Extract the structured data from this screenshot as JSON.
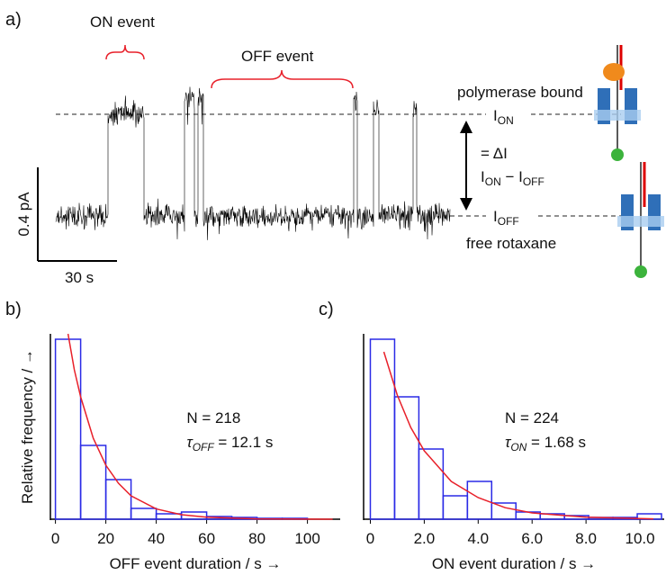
{
  "panel_a": {
    "label": "a)",
    "on_event": "ON event",
    "off_event": "OFF event",
    "polymerase_bound": "polymerase bound",
    "i_on": [
      "I",
      "ON"
    ],
    "delta": "= ΔI",
    "difference": [
      "I",
      "ON",
      " − I",
      "OFF"
    ],
    "i_off": [
      "I",
      "OFF"
    ],
    "free_rotaxane": "free rotaxane",
    "scale_y": "0.4 pA",
    "scale_x": "30 s"
  },
  "chart_data": [
    {
      "type": "histogram",
      "panel_label": "b)",
      "bins": [
        0,
        10,
        20,
        30,
        40,
        50,
        60,
        70,
        80,
        90,
        100,
        110
      ],
      "values": [
        1.0,
        0.41,
        0.22,
        0.06,
        0.03,
        0.04,
        0.015,
        0.01,
        0.005,
        0.005,
        0.0
      ],
      "color": "#2a2ae6",
      "fit": {
        "color": "#e8202a",
        "x": [
          5,
          7.5,
          10,
          15,
          20,
          25,
          30,
          40,
          50,
          60,
          80,
          110
        ],
        "values": [
          1.03,
          0.83,
          0.68,
          0.45,
          0.3,
          0.2,
          0.13,
          0.057,
          0.025,
          0.011,
          0.002,
          0.0
        ]
      },
      "xlim": [
        -2,
        113
      ],
      "ylim": [
        0,
        1.03
      ],
      "xticks": [
        0,
        20,
        40,
        60,
        80,
        100
      ],
      "xlabel": "OFF event duration / s →",
      "ylabel": "Relative frequency / →",
      "annotation": {
        "n": "N = 218",
        "tau": [
          "τ",
          "OFF",
          " = 12.1 s"
        ]
      }
    },
    {
      "type": "histogram",
      "panel_label": "c)",
      "bins": [
        0,
        0.9,
        1.8,
        2.7,
        3.6,
        4.5,
        5.4,
        6.3,
        7.2,
        8.1,
        9.0,
        9.9,
        10.8
      ],
      "values": [
        1.0,
        0.68,
        0.39,
        0.13,
        0.21,
        0.09,
        0.04,
        0.03,
        0.02,
        0.01,
        0.01,
        0.03
      ],
      "color": "#2a2ae6",
      "fit": {
        "color": "#e8202a",
        "x": [
          0.5,
          1,
          1.5,
          2,
          3,
          4,
          5,
          6,
          8,
          10.5
        ],
        "values": [
          0.93,
          0.69,
          0.51,
          0.38,
          0.21,
          0.12,
          0.064,
          0.035,
          0.011,
          0.002
        ]
      },
      "xlim": [
        -0.25,
        10.9
      ],
      "ylim": [
        0,
        1.03
      ],
      "xticks": [
        0,
        {
          "value": 2,
          "label": "2.0"
        },
        {
          "value": 4,
          "label": "4.0"
        },
        {
          "value": 6,
          "label": "6.0"
        },
        {
          "value": 8,
          "label": "8.0"
        },
        {
          "value": 10,
          "label": "10.0"
        }
      ],
      "xlabel": "ON event duration / s →",
      "annotation": {
        "n": "N = 224",
        "tau": [
          "τ",
          "ON",
          " = 1.68 s"
        ]
      }
    }
  ]
}
